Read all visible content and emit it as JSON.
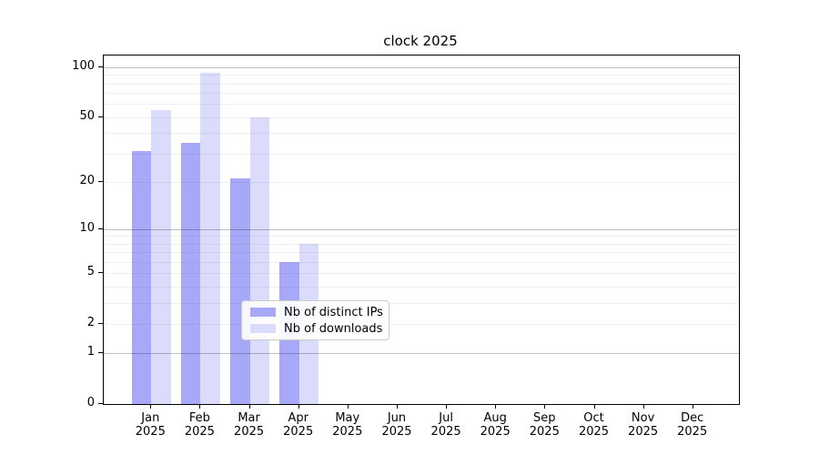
{
  "title": "clock 2025",
  "chart_data": {
    "type": "bar",
    "title": "clock 2025",
    "categories": [
      "Jan",
      "Feb",
      "Mar",
      "Apr",
      "May",
      "Jun",
      "Jul",
      "Aug",
      "Sep",
      "Oct",
      "Nov",
      "Dec"
    ],
    "category_year": "2025",
    "series": [
      {
        "name": "Nb of distinct IPs",
        "color": "#a8a8f8",
        "values": [
          31,
          35,
          21,
          6,
          0,
          0,
          0,
          0,
          0,
          0,
          0,
          0
        ]
      },
      {
        "name": "Nb of downloads",
        "color": "#dbdbfb",
        "values": [
          55,
          93,
          50,
          8,
          0,
          0,
          0,
          0,
          0,
          0,
          0,
          0
        ]
      }
    ],
    "xlabel": "",
    "ylabel": "",
    "yscale": "log1p",
    "ylim": [
      0,
      110
    ],
    "yticks": [
      0,
      1,
      2,
      5,
      10,
      20,
      50,
      100
    ],
    "minor_gridlines": [
      2,
      3,
      4,
      5,
      6,
      7,
      8,
      9,
      20,
      30,
      40,
      50,
      60,
      70,
      80,
      90
    ],
    "major_gridlines": [
      1,
      10,
      100
    ],
    "grid": true,
    "legend_position": "bottom-center",
    "colors": {
      "axis": "#000000",
      "minor_grid": "rgba(0,0,0,0.06)",
      "major_grid": "rgba(0,0,0,0.25)",
      "legend_border": "#cccccc",
      "background": "#ffffff"
    }
  }
}
